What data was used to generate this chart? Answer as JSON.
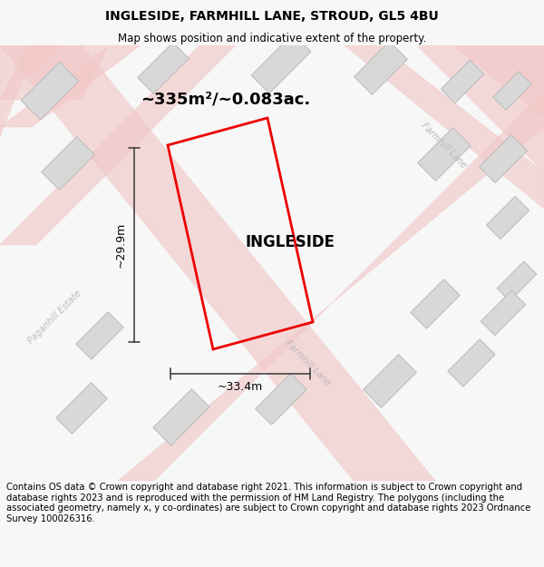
{
  "title": "INGLESIDE, FARMHILL LANE, STROUD, GL5 4BU",
  "subtitle": "Map shows position and indicative extent of the property.",
  "footer": "Contains OS data © Crown copyright and database right 2021. This information is subject to Crown copyright and database rights 2023 and is reproduced with the permission of HM Land Registry. The polygons (including the associated geometry, namely x, y co-ordinates) are subject to Crown copyright and database rights 2023 Ordnance Survey 100026316.",
  "area_label": "~335m²/~0.083ac.",
  "property_name": "INGLESIDE",
  "dim_width": "~33.4m",
  "dim_height": "~29.9m",
  "bg_color": "#f7f7f7",
  "map_bg": "#ffffff",
  "road_color": "#f2c8c8",
  "road_outline": "#e8a0a0",
  "building_color": "#d8d8d8",
  "building_outline": "#bbbbbb",
  "highlight_color": "#ee0000",
  "dim_color": "#444444",
  "road_label_color": "#bbbbbb",
  "title_fontsize": 10,
  "subtitle_fontsize": 8.5,
  "footer_fontsize": 7.2,
  "property_fontsize": 12,
  "area_fontsize": 13,
  "dim_fontsize": 9
}
